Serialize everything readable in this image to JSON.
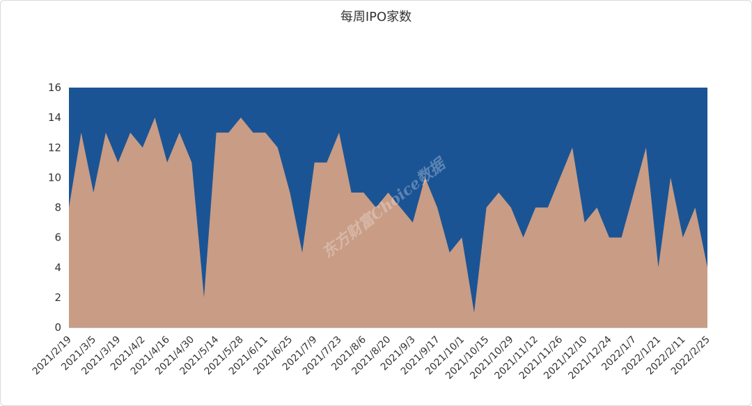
{
  "chart_data": {
    "type": "area",
    "title": "每周IPO家数",
    "xlabel": "",
    "ylabel": "",
    "ylim": [
      0,
      16
    ],
    "yticks": [
      0,
      2,
      4,
      6,
      8,
      10,
      12,
      14,
      16
    ],
    "grid": false,
    "legend": "none",
    "watermark": "东方财富Choice数据",
    "colors": {
      "area": "#C89C85",
      "background": "#1B5494"
    },
    "x": [
      "2021/2/19",
      "2021/2/26",
      "2021/3/5",
      "2021/3/12",
      "2021/3/19",
      "2021/3/26",
      "2021/4/2",
      "2021/4/9",
      "2021/4/16",
      "2021/4/23",
      "2021/4/30",
      "2021/5/7",
      "2021/5/14",
      "2021/5/21",
      "2021/5/28",
      "2021/6/4",
      "2021/6/11",
      "2021/6/18",
      "2021/6/25",
      "2021/7/2",
      "2021/7/9",
      "2021/7/16",
      "2021/7/23",
      "2021/7/30",
      "2021/8/6",
      "2021/8/13",
      "2021/8/20",
      "2021/8/27",
      "2021/9/3",
      "2021/9/10",
      "2021/9/17",
      "2021/9/24",
      "2021/10/1",
      "2021/10/8",
      "2021/10/15",
      "2021/10/22",
      "2021/10/29",
      "2021/11/5",
      "2021/11/12",
      "2021/11/19",
      "2021/11/26",
      "2021/12/3",
      "2021/12/10",
      "2021/12/17",
      "2021/12/24",
      "2021/12/31",
      "2022/1/7",
      "2022/1/14",
      "2022/1/21",
      "2022/1/28",
      "2022/2/11",
      "2022/2/18",
      "2022/2/25"
    ],
    "x_tick_labels": [
      "2021/2/19",
      "2021/3/5",
      "2021/3/19",
      "2021/4/2",
      "2021/4/16",
      "2021/4/30",
      "2021/5/14",
      "2021/5/28",
      "2021/6/11",
      "2021/6/25",
      "2021/7/9",
      "2021/7/23",
      "2021/8/6",
      "2021/8/20",
      "2021/9/3",
      "2021/9/17",
      "2021/10/1",
      "2021/10/15",
      "2021/10/29",
      "2021/11/12",
      "2021/11/26",
      "2021/12/10",
      "2021/12/24",
      "2022/1/7",
      "2022/1/21",
      "2022/2/11",
      "2022/2/25"
    ],
    "series": [
      {
        "values": [
          8,
          13,
          9,
          13,
          11,
          13,
          12,
          14,
          11,
          13,
          11,
          2,
          13,
          13,
          14,
          13,
          13,
          12,
          9,
          5,
          11,
          11,
          13,
          9,
          9,
          8,
          9,
          8,
          7,
          10,
          8,
          5,
          6,
          1,
          8,
          9,
          8,
          6,
          8,
          8,
          10,
          12,
          7,
          8,
          6,
          6,
          9,
          12,
          4,
          10,
          6,
          8,
          4
        ]
      }
    ]
  }
}
